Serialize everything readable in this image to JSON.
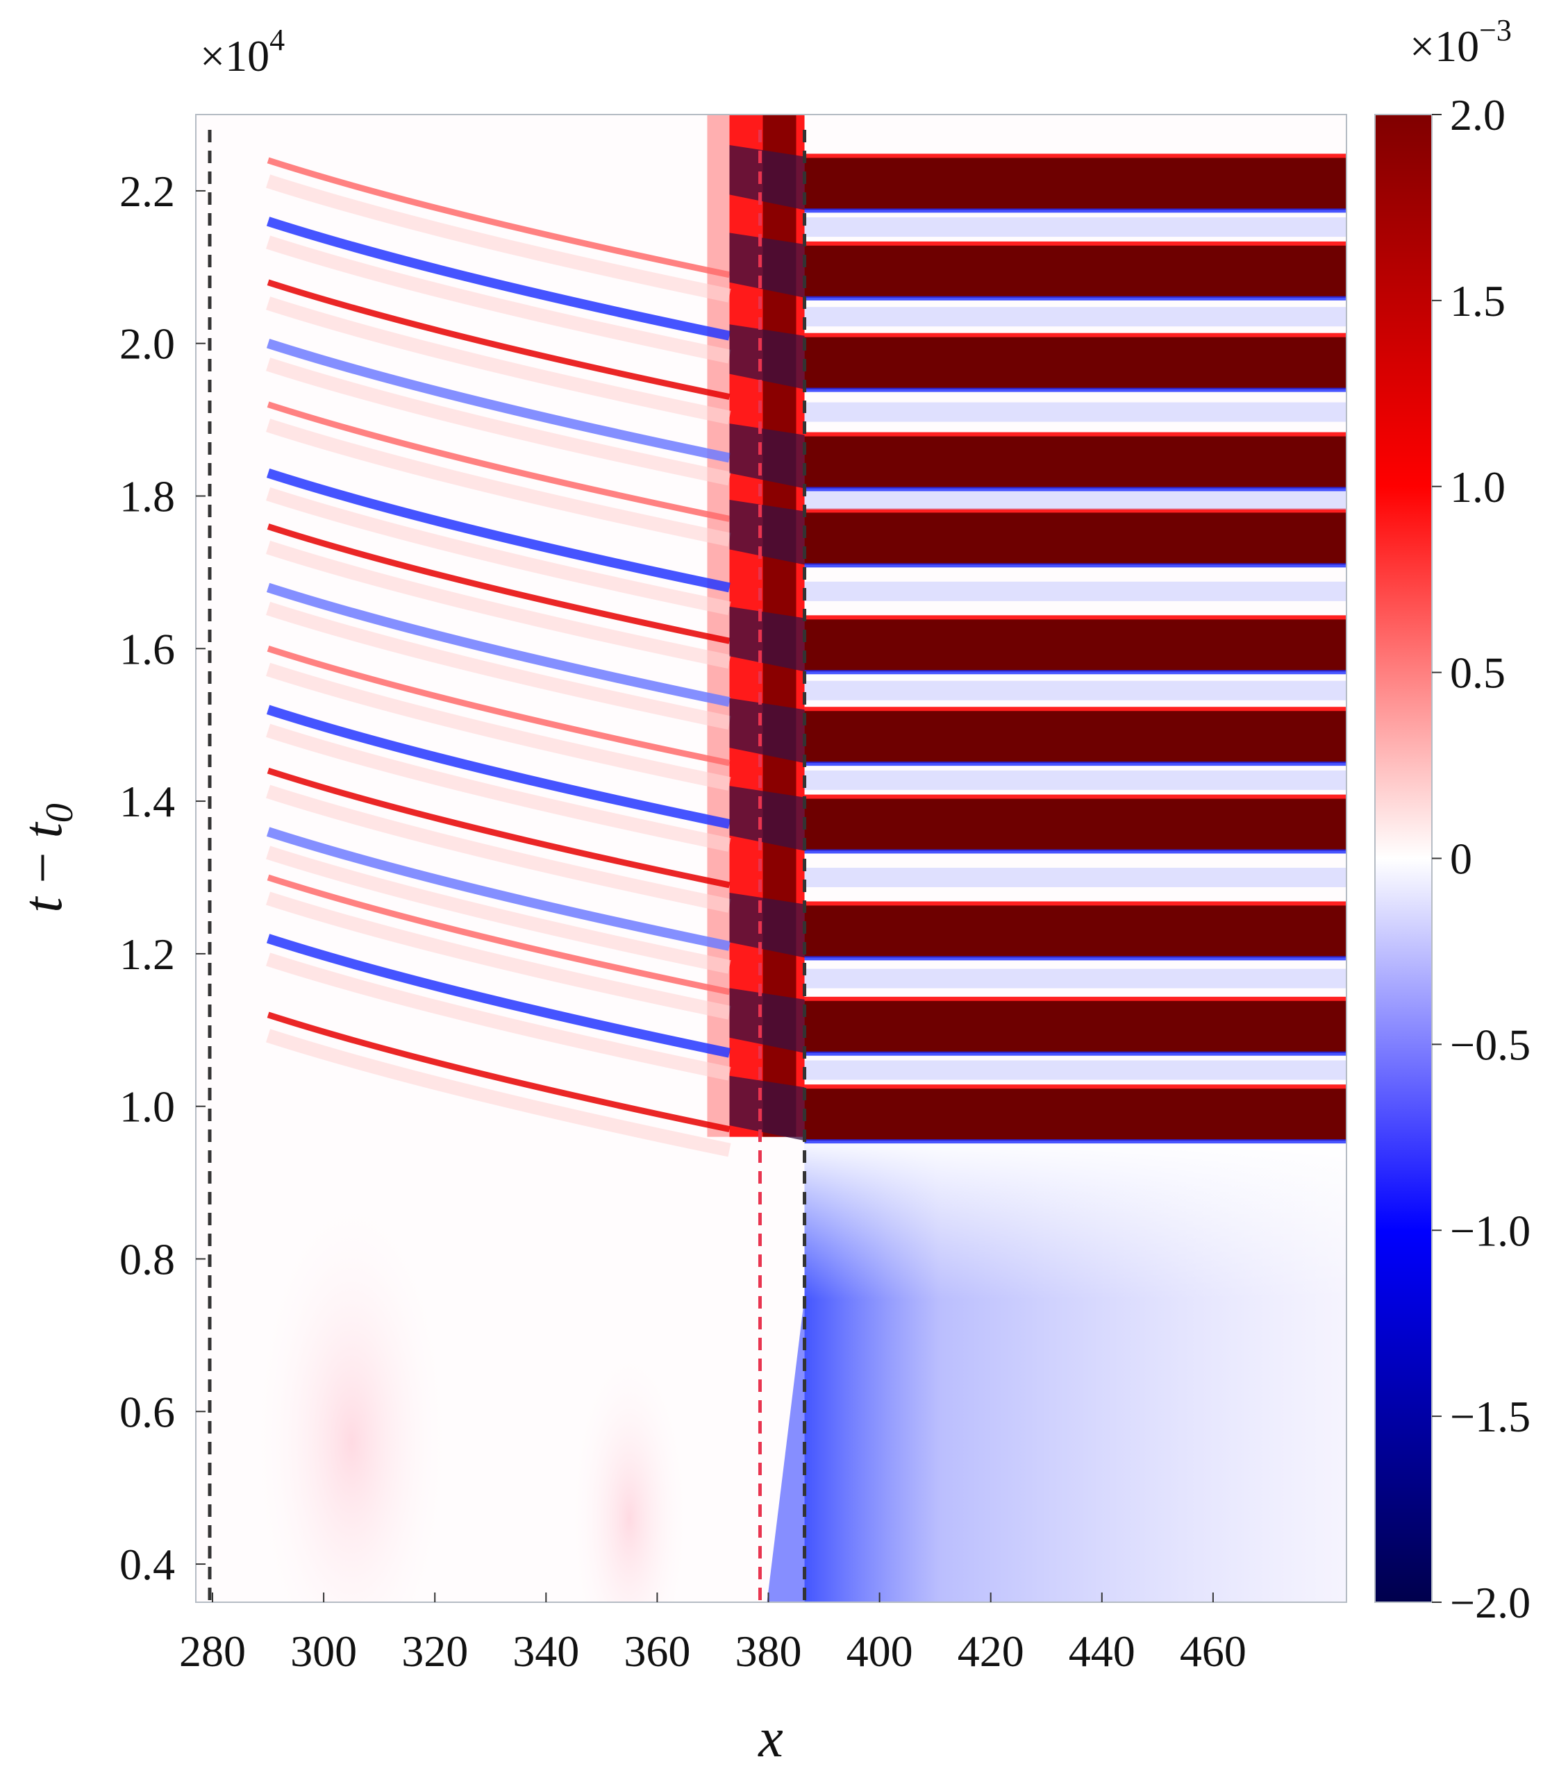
{
  "chart_data": {
    "type": "heatmap",
    "title": "",
    "xlabel": "x",
    "ylabel_main": "t",
    "ylabel_minus": " − ",
    "ylabel_sub_base": "t",
    "ylabel_sub": "0",
    "xlim": [
      277,
      484
    ],
    "ylim": [
      3500,
      23000
    ],
    "x_ticks": [
      280,
      300,
      320,
      340,
      360,
      380,
      400,
      420,
      440,
      460
    ],
    "x_tick_labels": [
      "280",
      "300",
      "320",
      "340",
      "360",
      "380",
      "400",
      "420",
      "440",
      "460"
    ],
    "y_ticks": [
      4000,
      6000,
      8000,
      10000,
      12000,
      14000,
      16000,
      18000,
      20000,
      22000
    ],
    "y_tick_labels": [
      "0.4",
      "0.6",
      "0.8",
      "1.0",
      "1.2",
      "1.4",
      "1.6",
      "1.8",
      "2.0",
      "2.2"
    ],
    "y_multiplier": {
      "base": "×10",
      "exponent": "4"
    },
    "colorbar": {
      "range": [
        -0.002,
        0.002
      ],
      "ticks": [
        2.0,
        1.5,
        1.0,
        0.5,
        0,
        -0.5,
        -1.0,
        -1.5,
        -2.0
      ],
      "tick_labels": [
        "2.0",
        "1.5",
        "1.0",
        "0.5",
        "0",
        "−0.5",
        "−1.0",
        "−1.5",
        "−2.0"
      ],
      "multiplier": {
        "base": "×10",
        "exponent": "−3"
      },
      "colormap": "seismic",
      "colors": [
        "#00004c",
        "#0000ff",
        "#ffffff",
        "#ff0000",
        "#800000"
      ]
    },
    "reference_lines": [
      {
        "x": 279.5,
        "color": "#333333",
        "style": "dashed"
      },
      {
        "x": 378.5,
        "color": "#e8344f",
        "style": "dashed"
      },
      {
        "x": 386.5,
        "color": "#333333",
        "style": "dashed"
      }
    ],
    "features": {
      "onset_time": 9600,
      "right_bands_t": [
        9900,
        11050,
        12300,
        13700,
        14850,
        16050,
        17450,
        18450,
        19750,
        20950,
        22100
      ],
      "right_bands_halfwidth": 350,
      "left_streak_start_t": [
        11200,
        12200,
        13000,
        13600,
        14400,
        15200,
        16000,
        16800,
        17600,
        18300,
        19200,
        20000,
        20800,
        21600,
        22400
      ],
      "left_streak_start_x": 290,
      "low_t_region": "x>386: negative values (blue), x<378: weak positive values"
    }
  }
}
